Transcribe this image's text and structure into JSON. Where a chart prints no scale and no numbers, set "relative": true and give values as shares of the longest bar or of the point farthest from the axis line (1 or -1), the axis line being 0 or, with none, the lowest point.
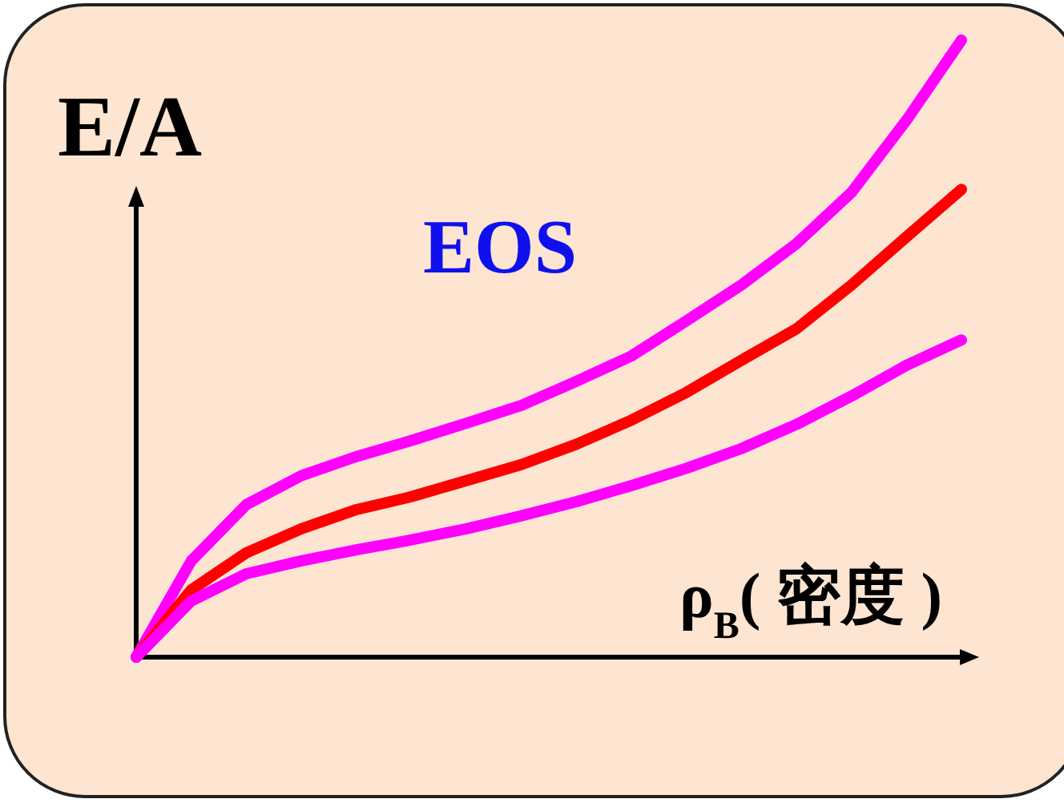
{
  "chart_data": {
    "type": "line",
    "relative": true,
    "title": "EOS",
    "ylabel": "E/A",
    "xlabel": "ρ$_{B}$( 密度 )",
    "categories": [
      null,
      null,
      null,
      null,
      null,
      null,
      null,
      null,
      null,
      null,
      null,
      null,
      null,
      null,
      null,
      null
    ],
    "series": [
      {
        "color": "#ff00ff",
        "values": [
          0,
          0.156,
          0.247,
          0.294,
          0.325,
          0.351,
          0.379,
          0.408,
          0.447,
          0.488,
          0.545,
          0.603,
          0.67,
          0.753,
          0.87,
          1
        ]
      },
      {
        "color": "#ff0000",
        "values": [
          0,
          0.109,
          0.169,
          0.208,
          0.239,
          0.26,
          0.286,
          0.312,
          0.345,
          0.384,
          0.429,
          0.481,
          0.532,
          0.603,
          0.681,
          0.758
        ]
      },
      {
        "color": "#ff00ff",
        "values": [
          0,
          0.091,
          0.135,
          0.156,
          0.174,
          0.19,
          0.208,
          0.229,
          0.252,
          0.278,
          0.306,
          0.338,
          0.377,
          0.423,
          0.473,
          0.514
        ]
      }
    ]
  }
}
